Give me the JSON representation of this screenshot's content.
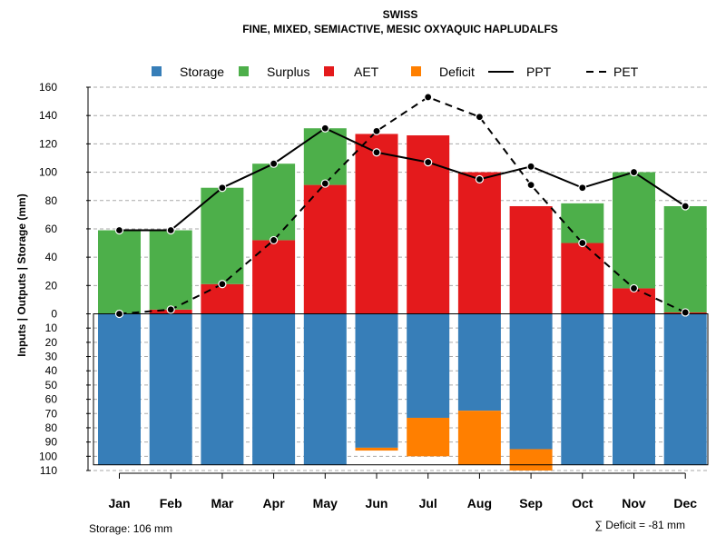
{
  "chart_data": {
    "type": "bar",
    "title": "SWISS",
    "subtitle": "FINE, MIXED, SEMIACTIVE, MESIC OXYAQUIC HAPLUDALFS",
    "ylabel": "Inputs | Outputs | Storage    (mm)",
    "ylim_top": [
      0,
      160
    ],
    "ylim_bottom": [
      0,
      110
    ],
    "y_ticks_top": [
      "160",
      "140",
      "120",
      "100",
      "80",
      "60",
      "40",
      "20",
      "0"
    ],
    "y_ticks_bottom": [
      "10",
      "20",
      "30",
      "40",
      "50",
      "60",
      "70",
      "80",
      "90",
      "100",
      "110"
    ],
    "categories": [
      "Jan",
      "Feb",
      "Mar",
      "Apr",
      "May",
      "Jun",
      "Jul",
      "Aug",
      "Sep",
      "Oct",
      "Nov",
      "Dec"
    ],
    "legend": [
      {
        "label": "Storage",
        "kind": "box",
        "color": "#377eb8"
      },
      {
        "label": "Surplus",
        "kind": "box",
        "color": "#4daf4a"
      },
      {
        "label": "AET",
        "kind": "box",
        "color": "#e41a1c"
      },
      {
        "label": "Deficit",
        "kind": "box",
        "color": "#ff7f00"
      },
      {
        "label": "PPT",
        "kind": "line",
        "dash": "solid",
        "color": "#000000"
      },
      {
        "label": "PET",
        "kind": "line",
        "dash": "dashed",
        "color": "#000000"
      }
    ],
    "series": [
      {
        "name": "AET",
        "color": "#e41a1c",
        "values": [
          0,
          3,
          21,
          52,
          91,
          127,
          126,
          100,
          76,
          50,
          18,
          1
        ]
      },
      {
        "name": "Surplus",
        "color": "#4daf4a",
        "values": [
          59,
          56,
          68,
          54,
          40,
          0,
          0,
          0,
          0,
          28,
          82,
          75
        ]
      },
      {
        "name": "Storage",
        "color": "#377eb8",
        "values": [
          106,
          106,
          106,
          106,
          106,
          94,
          73,
          68,
          95,
          106,
          106,
          106
        ]
      },
      {
        "name": "Deficit",
        "color": "#ff7f00",
        "values": [
          0,
          0,
          0,
          0,
          0,
          2,
          27,
          38,
          15,
          0,
          0,
          0
        ]
      },
      {
        "name": "PPT",
        "color": "#000000",
        "values": [
          59,
          59,
          89,
          106,
          131,
          114,
          107,
          95,
          104,
          89,
          100,
          76
        ]
      },
      {
        "name": "PET",
        "color": "#000000",
        "values": [
          0,
          3,
          21,
          52,
          92,
          129,
          153,
          139,
          91,
          50,
          18,
          1
        ]
      }
    ],
    "storage_capacity": 106,
    "storage_label": "Storage: 106 mm",
    "deficit_sum_label": "∑ Deficit = -81 mm",
    "colors": {
      "grid": "#aaaaaa",
      "axis": "#000000",
      "point_fill": "#000000",
      "point_stroke": "#ffffff"
    }
  }
}
